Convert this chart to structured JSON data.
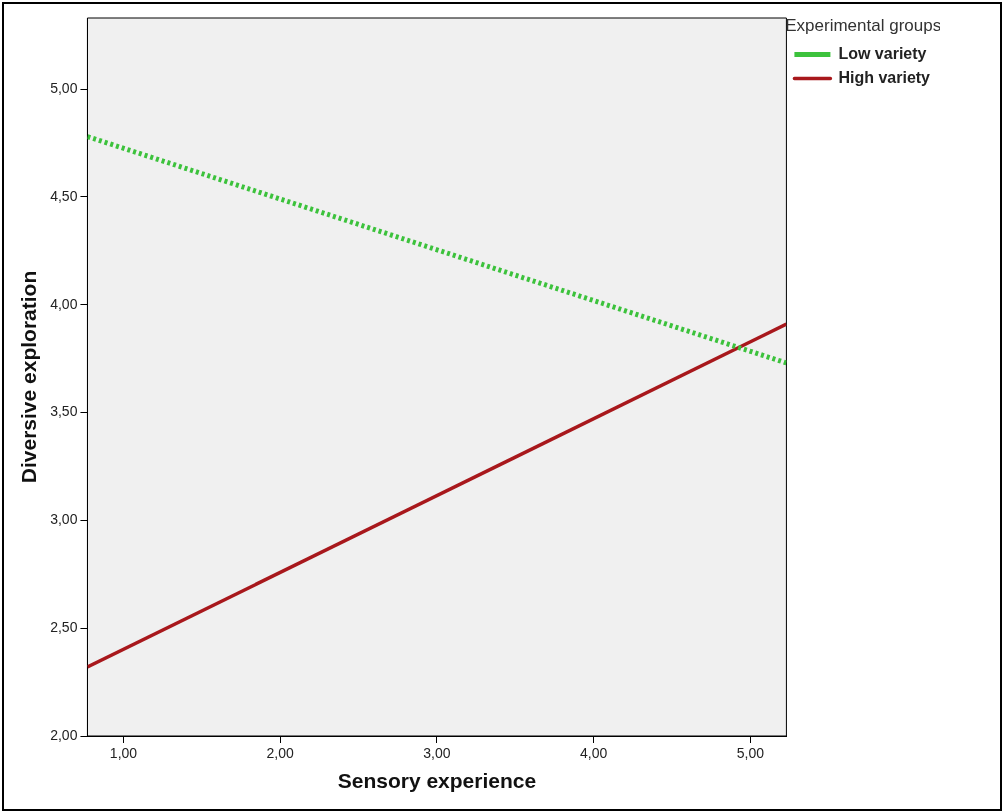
{
  "chart_data": {
    "type": "line",
    "xlabel": "Sensory experience",
    "ylabel": "Diversive exploration",
    "legend_title": "Experimental groups",
    "legend": "top right",
    "marker": "none",
    "x": [
      0.77,
      5.23
    ],
    "xlim": [
      0.77,
      5.23
    ],
    "ylim": [
      2,
      5.33
    ],
    "xticks": [
      {
        "value": 1,
        "label": "1,00"
      },
      {
        "value": 2,
        "label": "2,00"
      },
      {
        "value": 3,
        "label": "3,00"
      },
      {
        "value": 4,
        "label": "4,00"
      },
      {
        "value": 5,
        "label": "5,00"
      }
    ],
    "yticks": [
      {
        "value": 2,
        "label": "2,00"
      },
      {
        "value": 2.5,
        "label": "2,50"
      },
      {
        "value": 3,
        "label": "3,00"
      },
      {
        "value": 3.5,
        "label": "3,50"
      },
      {
        "value": 4,
        "label": "4,00"
      },
      {
        "value": 4.5,
        "label": "4,50"
      },
      {
        "value": 5,
        "label": "5,00"
      }
    ],
    "series": [
      {
        "name": "Low variety",
        "color": "#3cc23c",
        "line_style": "dotted",
        "values": [
          4.78,
          3.73
        ]
      },
      {
        "name": "High variety",
        "color": "#a8181c",
        "line_style": "solid",
        "values": [
          2.32,
          3.91
        ]
      }
    ]
  }
}
